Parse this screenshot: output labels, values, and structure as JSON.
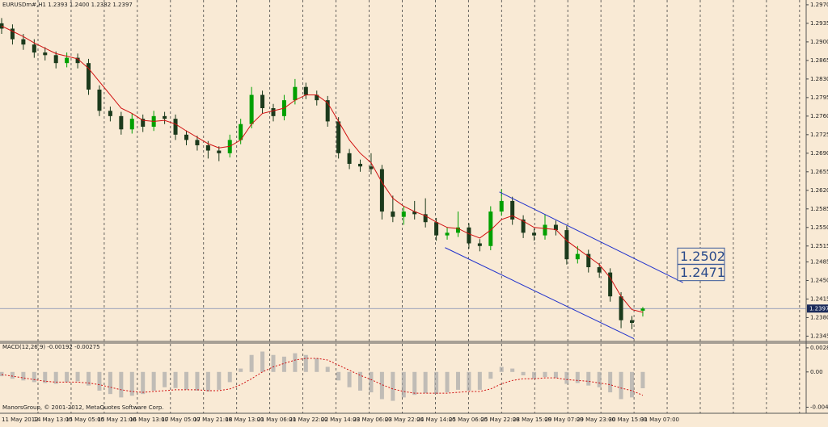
{
  "chart_data": [
    {
      "type": "candlestick",
      "header": "EURUSDm#,H1  1.2393 1.2400 1.2382 1.2397",
      "ylim": [
        1.2335,
        1.2979
      ],
      "yticks": [
        {
          "value": 1.297,
          "label": "1.2970"
        },
        {
          "value": 1.2935,
          "label": "1.2935"
        },
        {
          "value": 1.29,
          "label": "1.2900"
        },
        {
          "value": 1.2865,
          "label": "1.2865"
        },
        {
          "value": 1.283,
          "label": "1.2830"
        },
        {
          "value": 1.2795,
          "label": "1.2795"
        },
        {
          "value": 1.276,
          "label": "1.2760"
        },
        {
          "value": 1.2725,
          "label": "1.2725"
        },
        {
          "value": 1.269,
          "label": "1.2690"
        },
        {
          "value": 1.2655,
          "label": "1.2655"
        },
        {
          "value": 1.262,
          "label": "1.2620"
        },
        {
          "value": 1.2585,
          "label": "1.2585"
        },
        {
          "value": 1.255,
          "label": "1.2550"
        },
        {
          "value": 1.2515,
          "label": "1.2515"
        },
        {
          "value": 1.2485,
          "label": "1.2485"
        },
        {
          "value": 1.245,
          "label": "1.2450"
        },
        {
          "value": 1.2415,
          "label": "1.2415"
        },
        {
          "value": 1.238,
          "label": "1.2380"
        },
        {
          "value": 1.2345,
          "label": "1.2345"
        }
      ],
      "x_labels": [
        "11 May 2012",
        "14 May 13:00",
        "15 May 05:00",
        "15 May 21:00",
        "16 May 13:00",
        "17 May 05:00",
        "17 May 21:00",
        "18 May 13:00",
        "21 May 06:00",
        "21 May 22:00",
        "22 May 14:00",
        "23 May 06:00",
        "23 May 22:00",
        "24 May 14:00",
        "25 May 06:00",
        "25 May 22:00",
        "28 May 15:00",
        "29 May 07:00",
        "29 May 23:00",
        "30 May 15:00",
        "31 May 07:00"
      ],
      "bull_color": "#00a000",
      "bear_color": "#1c3a1c",
      "ma_color": "#d01010",
      "channel_color": "#2233cc",
      "ohlc": [
        [
          1.2935,
          1.2945,
          1.2915,
          1.2925
        ],
        [
          1.2925,
          1.2933,
          1.2895,
          1.2905
        ],
        [
          1.2905,
          1.2915,
          1.2885,
          1.2895
        ],
        [
          1.2895,
          1.2905,
          1.287,
          1.288
        ],
        [
          1.288,
          1.289,
          1.2865,
          1.2875
        ],
        [
          1.2875,
          1.2882,
          1.285,
          1.286
        ],
        [
          1.286,
          1.288,
          1.2852,
          1.287
        ],
        [
          1.287,
          1.2878,
          1.285,
          1.286
        ],
        [
          1.286,
          1.2868,
          1.28,
          1.281
        ],
        [
          1.281,
          1.2818,
          1.276,
          1.277
        ],
        [
          1.277,
          1.2778,
          1.275,
          1.276
        ],
        [
          1.276,
          1.2768,
          1.2725,
          1.2735
        ],
        [
          1.2735,
          1.2765,
          1.2727,
          1.2755
        ],
        [
          1.2755,
          1.2763,
          1.273,
          1.274
        ],
        [
          1.274,
          1.277,
          1.2732,
          1.276
        ],
        [
          1.276,
          1.2768,
          1.2745,
          1.2755
        ],
        [
          1.2755,
          1.2763,
          1.2715,
          1.2725
        ],
        [
          1.2725,
          1.2733,
          1.2705,
          1.2715
        ],
        [
          1.2715,
          1.2723,
          1.2695,
          1.2705
        ],
        [
          1.2705,
          1.2713,
          1.268,
          1.2695
        ],
        [
          1.2695,
          1.2703,
          1.2675,
          1.269
        ],
        [
          1.269,
          1.2725,
          1.2682,
          1.2715
        ],
        [
          1.2715,
          1.2755,
          1.2707,
          1.2745
        ],
        [
          1.2745,
          1.2815,
          1.2737,
          1.28
        ],
        [
          1.28,
          1.2808,
          1.2765,
          1.2775
        ],
        [
          1.2775,
          1.2783,
          1.275,
          1.276
        ],
        [
          1.276,
          1.28,
          1.2752,
          1.279
        ],
        [
          1.279,
          1.283,
          1.2782,
          1.2815
        ],
        [
          1.2815,
          1.2823,
          1.2792,
          1.28
        ],
        [
          1.28,
          1.2808,
          1.278,
          1.279
        ],
        [
          1.279,
          1.2798,
          1.274,
          1.275
        ],
        [
          1.275,
          1.2758,
          1.268,
          1.269
        ],
        [
          1.269,
          1.2698,
          1.266,
          1.267
        ],
        [
          1.267,
          1.2678,
          1.2655,
          1.2665
        ],
        [
          1.2665,
          1.269,
          1.265,
          1.266
        ],
        [
          1.266,
          1.2668,
          1.2565,
          1.258
        ],
        [
          1.258,
          1.261,
          1.256,
          1.257
        ],
        [
          1.257,
          1.259,
          1.2555,
          1.258
        ],
        [
          1.258,
          1.26,
          1.2565,
          1.2575
        ],
        [
          1.2575,
          1.2605,
          1.255,
          1.256
        ],
        [
          1.256,
          1.2568,
          1.2525,
          1.2535
        ],
        [
          1.2535,
          1.255,
          1.2527,
          1.254
        ],
        [
          1.254,
          1.258,
          1.2532,
          1.255
        ],
        [
          1.255,
          1.2558,
          1.251,
          1.252
        ],
        [
          1.252,
          1.2528,
          1.2505,
          1.2515
        ],
        [
          1.2515,
          1.259,
          1.2507,
          1.258
        ],
        [
          1.258,
          1.2622,
          1.2572,
          1.26
        ],
        [
          1.26,
          1.2608,
          1.2555,
          1.2565
        ],
        [
          1.2565,
          1.2573,
          1.253,
          1.254
        ],
        [
          1.254,
          1.2548,
          1.2525,
          1.2535
        ],
        [
          1.2535,
          1.2575,
          1.2527,
          1.2555
        ],
        [
          1.2555,
          1.2563,
          1.2535,
          1.2545
        ],
        [
          1.2545,
          1.2553,
          1.248,
          1.249
        ],
        [
          1.249,
          1.2515,
          1.2482,
          1.25
        ],
        [
          1.25,
          1.2508,
          1.2465,
          1.2475
        ],
        [
          1.2475,
          1.2483,
          1.2455,
          1.2465
        ],
        [
          1.2465,
          1.2473,
          1.241,
          1.242
        ],
        [
          1.242,
          1.2428,
          1.236,
          1.2375
        ],
        [
          1.2375,
          1.2383,
          1.2358,
          1.237
        ],
        [
          1.2393,
          1.24,
          1.2382,
          1.2397
        ]
      ],
      "ma": [
        1.293,
        1.292,
        1.291,
        1.2898,
        1.2888,
        1.2878,
        1.2873,
        1.2868,
        1.285,
        1.2825,
        1.28,
        1.2775,
        1.2765,
        1.2752,
        1.275,
        1.2752,
        1.2745,
        1.2732,
        1.272,
        1.2708,
        1.27,
        1.2703,
        1.2715,
        1.2745,
        1.2765,
        1.277,
        1.2775,
        1.279,
        1.28,
        1.28,
        1.2785,
        1.275,
        1.2715,
        1.269,
        1.2672,
        1.2635,
        1.2605,
        1.259,
        1.258,
        1.2572,
        1.256,
        1.255,
        1.2548,
        1.2538,
        1.253,
        1.2545,
        1.2565,
        1.2572,
        1.2562,
        1.255,
        1.2548,
        1.2546,
        1.2525,
        1.251,
        1.2495,
        1.248,
        1.2455,
        1.242,
        1.2395,
        1.239
      ],
      "channels": [
        {
          "x": [
            45.8,
            62.7
          ],
          "values": [
            1.2617,
            1.2446
          ]
        },
        {
          "x": [
            40.8,
            58.2
          ],
          "values": [
            1.2512,
            1.234
          ]
        }
      ],
      "price_labels": [
        1.2502,
        1.2471
      ],
      "last_price": 1.2397
    },
    {
      "type": "macd",
      "label": "MACD(12,26,9) -0.00192 -0.00275",
      "ylim": [
        -0.0042,
        0.0034
      ],
      "yticks": [
        0.00284,
        {
          "value": 0,
          "label": "0.00"
        },
        -0.00415
      ],
      "hist_color": "#a8a8a8",
      "signal_color": "#d01010",
      "histogram": [
        -0.0005,
        -0.0008,
        -0.001,
        -0.0012,
        -0.0013,
        -0.0014,
        -0.0012,
        -0.0011,
        -0.0016,
        -0.0022,
        -0.0026,
        -0.003,
        -0.0028,
        -0.0026,
        -0.0022,
        -0.0018,
        -0.0019,
        -0.0021,
        -0.0022,
        -0.0023,
        -0.0021,
        -0.0012,
        0.0004,
        0.002,
        0.0024,
        0.002,
        0.0018,
        0.0022,
        0.002,
        0.0016,
        0.0006,
        -0.001,
        -0.0018,
        -0.0022,
        -0.0024,
        -0.0032,
        -0.0034,
        -0.003,
        -0.0027,
        -0.0025,
        -0.0026,
        -0.0024,
        -0.0021,
        -0.0022,
        -0.0021,
        -0.0008,
        0.0006,
        0.0004,
        -0.0004,
        -0.0008,
        -0.0006,
        -0.0007,
        -0.0014,
        -0.0013,
        -0.0016,
        -0.0018,
        -0.0024,
        -0.0032,
        -0.003,
        -0.00192
      ],
      "signal": [
        -0.0003,
        -0.0005,
        -0.0007,
        -0.0009,
        -0.0011,
        -0.0012,
        -0.0012,
        -0.0012,
        -0.0013,
        -0.0015,
        -0.0018,
        -0.0021,
        -0.0023,
        -0.0024,
        -0.0023,
        -0.0022,
        -0.0021,
        -0.0021,
        -0.0021,
        -0.0022,
        -0.0022,
        -0.002,
        -0.0015,
        -0.0008,
        0,
        0.0006,
        0.001,
        0.0014,
        0.0016,
        0.0016,
        0.0014,
        0.0008,
        0.0002,
        -0.0004,
        -0.0009,
        -0.0015,
        -0.002,
        -0.0023,
        -0.0025,
        -0.0025,
        -0.0025,
        -0.0025,
        -0.0024,
        -0.0023,
        -0.0023,
        -0.002,
        -0.0014,
        -0.001,
        -0.0008,
        -0.0008,
        -0.0007,
        -0.0007,
        -0.0009,
        -0.001,
        -0.0011,
        -0.0013,
        -0.0015,
        -0.0019,
        -0.0022,
        -0.00275
      ]
    }
  ],
  "footer": "ManorsGroup, © 2001-2012, MetaQuotes Software Corp."
}
